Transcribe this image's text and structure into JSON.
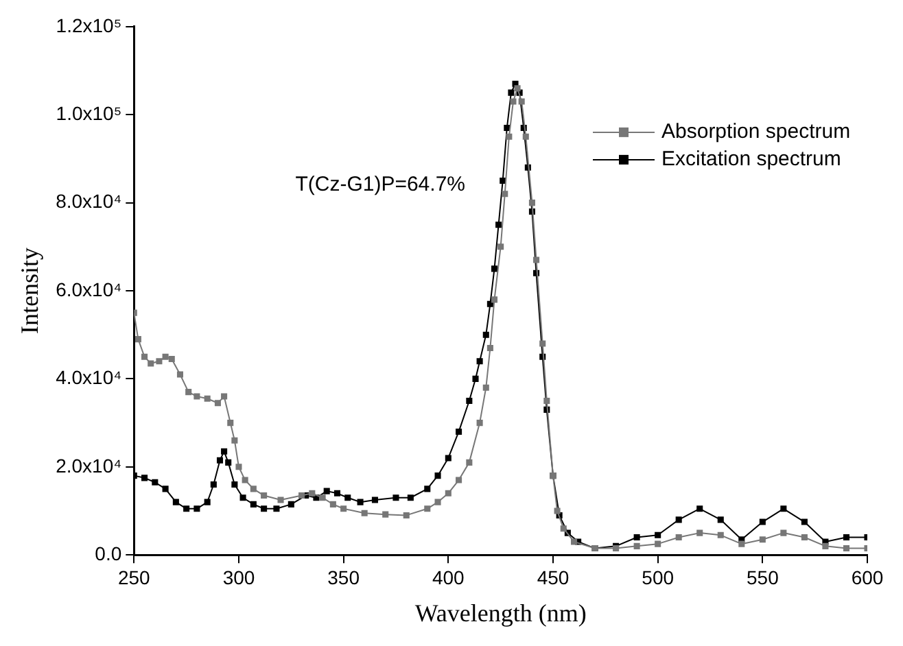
{
  "chart_data": {
    "type": "line",
    "xlabel": "Wavelength (nm)",
    "ylabel": "Intensity",
    "annotations": [
      "T(Cz-G1)P=64.7%"
    ],
    "xlim": [
      250,
      600
    ],
    "xticks": [
      250,
      300,
      350,
      400,
      450,
      500,
      550,
      600
    ],
    "ylim": [
      0,
      120000
    ],
    "yticks": [
      {
        "value": 0,
        "label": "0.0"
      },
      {
        "value": 20000,
        "label": "2.0x10⁴"
      },
      {
        "value": 40000,
        "label": "4.0x10⁴"
      },
      {
        "value": 60000,
        "label": "6.0x10⁴"
      },
      {
        "value": 80000,
        "label": "8.0x10⁴"
      },
      {
        "value": 100000,
        "label": "1.0x10⁵"
      },
      {
        "value": 120000,
        "label": "1.2x10⁵"
      }
    ],
    "grid": false,
    "legend": "top right",
    "marker": "square",
    "line_style": "solid",
    "series": [
      {
        "name": "Absorption spectrum",
        "color": "#777777",
        "x": [
          250,
          252,
          255,
          258,
          262,
          265,
          268,
          272,
          276,
          280,
          285,
          290,
          293,
          296,
          298,
          300,
          303,
          307,
          312,
          320,
          330,
          335,
          340,
          345,
          350,
          360,
          370,
          380,
          390,
          395,
          400,
          405,
          410,
          415,
          418,
          420,
          422,
          425,
          427,
          429,
          431,
          433,
          435,
          437,
          440,
          442,
          445,
          447,
          450,
          452,
          455,
          460,
          470,
          480,
          490,
          500,
          510,
          520,
          530,
          540,
          550,
          560,
          570,
          580,
          590,
          600
        ],
        "values": [
          55000,
          49000,
          45000,
          43500,
          44000,
          45000,
          44500,
          41000,
          37000,
          36000,
          35500,
          34500,
          36000,
          30000,
          26000,
          20000,
          17000,
          15000,
          13500,
          12500,
          13500,
          14000,
          13000,
          11500,
          10500,
          9500,
          9200,
          9000,
          10500,
          12000,
          14000,
          17000,
          21000,
          30000,
          38000,
          47000,
          58000,
          70000,
          82000,
          95000,
          103000,
          106000,
          103000,
          95000,
          80000,
          67000,
          48000,
          35000,
          18000,
          10000,
          6000,
          3000,
          1500,
          1500,
          2000,
          2500,
          4000,
          5000,
          4500,
          2500,
          3500,
          5000,
          4000,
          2000,
          1500,
          1500
        ]
      },
      {
        "name": "Excitation spectrum",
        "color": "#000000",
        "x": [
          250,
          255,
          260,
          265,
          270,
          275,
          280,
          285,
          288,
          291,
          293,
          295,
          298,
          302,
          307,
          312,
          318,
          325,
          332,
          337,
          342,
          347,
          352,
          358,
          365,
          375,
          382,
          390,
          395,
          400,
          405,
          410,
          413,
          415,
          418,
          420,
          422,
          424,
          426,
          428,
          430,
          432,
          434,
          436,
          438,
          440,
          442,
          445,
          447,
          450,
          453,
          457,
          462,
          470,
          480,
          490,
          500,
          510,
          520,
          530,
          540,
          550,
          560,
          570,
          580,
          590,
          600
        ],
        "values": [
          18000,
          17500,
          16500,
          15000,
          12000,
          10500,
          10500,
          12000,
          16000,
          21500,
          23500,
          21000,
          16000,
          13000,
          11500,
          10500,
          10500,
          11500,
          13500,
          13000,
          14500,
          14000,
          13000,
          12000,
          12500,
          13000,
          13000,
          15000,
          18000,
          22000,
          28000,
          35000,
          40000,
          44000,
          50000,
          57000,
          65000,
          75000,
          85000,
          97000,
          105000,
          107000,
          105000,
          97000,
          88000,
          78000,
          64000,
          45000,
          33000,
          18000,
          9000,
          5000,
          3000,
          1500,
          2000,
          4000,
          4500,
          8000,
          10500,
          8000,
          3500,
          7500,
          10500,
          7500,
          3000,
          4000,
          4000
        ]
      }
    ]
  }
}
